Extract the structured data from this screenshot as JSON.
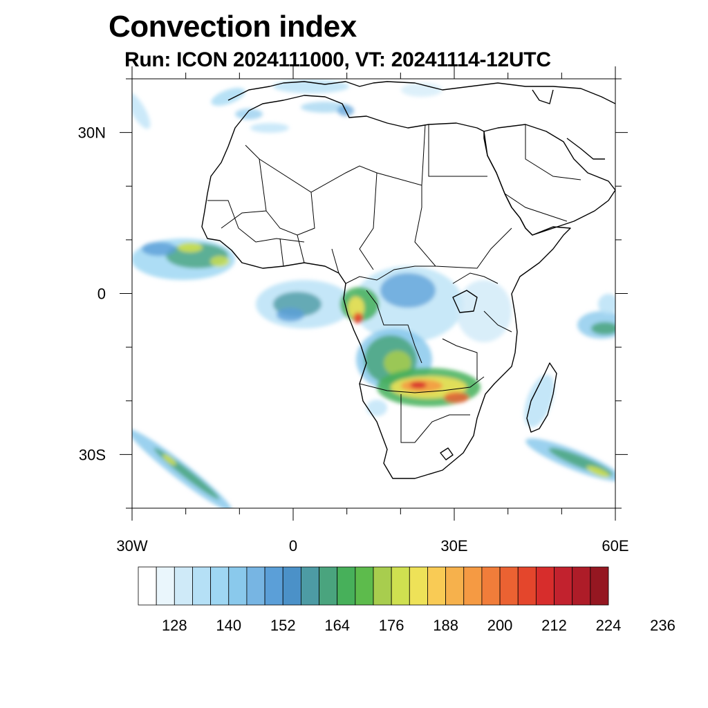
{
  "title": "Convection index",
  "subtitle": "Run: ICON 2024111000,  VT: 20241114-12UTC",
  "map": {
    "lon_range": [
      -30,
      60
    ],
    "lat_range": [
      -40,
      40
    ],
    "lon_tick_labels": [
      {
        "lon": -30,
        "label": "30W"
      },
      {
        "lon": 0,
        "label": "0"
      },
      {
        "lon": 30,
        "label": "30E"
      },
      {
        "lon": 60,
        "label": "60E"
      }
    ],
    "lat_tick_labels": [
      {
        "lat": 30,
        "label": "30N"
      },
      {
        "lat": 0,
        "label": "0"
      },
      {
        "lat": -30,
        "label": "30S"
      }
    ]
  },
  "colorbar": {
    "colors": [
      "#ffffff",
      "#eaf6fc",
      "#cfeaf8",
      "#b5e0f6",
      "#9fd7f3",
      "#8ac9ec",
      "#77b5e3",
      "#5b9fd8",
      "#4b91c8",
      "#4d9ba4",
      "#4aa47e",
      "#47b05a",
      "#5dbb4c",
      "#a8cd4e",
      "#cfe050",
      "#eee258",
      "#f9cb55",
      "#f6b14c",
      "#f59a43",
      "#f17d3a",
      "#eb6232",
      "#e4462c",
      "#d72d2c",
      "#c2222e",
      "#ae1c28",
      "#951721"
    ],
    "tick_labels": [
      "128",
      "140",
      "152",
      "164",
      "176",
      "188",
      "200",
      "212",
      "224",
      "236"
    ]
  }
}
